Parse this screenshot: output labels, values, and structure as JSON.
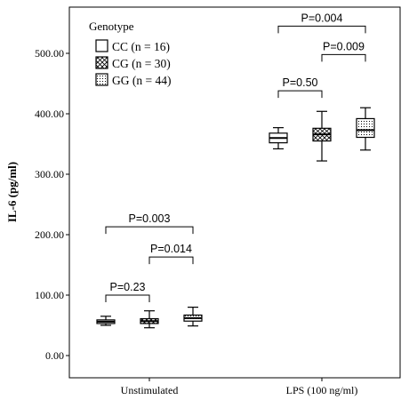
{
  "chart_data": {
    "type": "boxplot",
    "ylabel": "IL-6 (pg/ml)",
    "xlabel": "",
    "ylim": [
      -20,
      560
    ],
    "y_ticks": [
      0,
      100,
      200,
      300,
      400,
      500
    ],
    "y_tick_labels": [
      "0.00",
      "100.00",
      "200.00",
      "300.00",
      "400.00",
      "500.00"
    ],
    "categories": [
      "Unstimulated",
      "LPS (100 ng/ml)"
    ],
    "legend": {
      "title": "Genotype",
      "position": "top-left",
      "entries": [
        {
          "label": "CC (n = 16)",
          "pattern": "plain"
        },
        {
          "label": "CG (n = 30)",
          "pattern": "crosshatch"
        },
        {
          "label": "GG (n = 44)",
          "pattern": "dots"
        }
      ]
    },
    "series": [
      {
        "name": "CC",
        "pattern": "plain",
        "values": [
          {
            "min": 50,
            "q1": 53,
            "median": 56,
            "q3": 59,
            "max": 65
          },
          {
            "min": 342,
            "q1": 352,
            "median": 360,
            "q3": 368,
            "max": 377
          }
        ]
      },
      {
        "name": "CG",
        "pattern": "crosshatch",
        "values": [
          {
            "min": 46,
            "q1": 53,
            "median": 57,
            "q3": 61,
            "max": 74
          },
          {
            "min": 322,
            "q1": 355,
            "median": 366,
            "q3": 376,
            "max": 404
          }
        ]
      },
      {
        "name": "GG",
        "pattern": "dots",
        "values": [
          {
            "min": 49,
            "q1": 57,
            "median": 62,
            "q3": 67,
            "max": 80
          },
          {
            "min": 340,
            "q1": 361,
            "median": 373,
            "q3": 392,
            "max": 410
          }
        ]
      }
    ],
    "annotations": [
      {
        "text": "P=0.23",
        "group": 0,
        "from": 0,
        "to": 1,
        "y": 100
      },
      {
        "text": "P=0.014",
        "group": 0,
        "from": 1,
        "to": 2,
        "y": 163
      },
      {
        "text": "P=0.003",
        "group": 0,
        "from": 0,
        "to": 2,
        "y": 213
      },
      {
        "text": "P=0.50",
        "group": 1,
        "from": 0,
        "to": 1,
        "y": 438
      },
      {
        "text": "P=0.009",
        "group": 1,
        "from": 1,
        "to": 2,
        "y": 498
      },
      {
        "text": "P=0.004",
        "group": 1,
        "from": 0,
        "to": 2,
        "y": 545
      }
    ],
    "colors": {
      "axis": "#000000",
      "box_fill": "#ffffff",
      "pattern": "#000000"
    }
  }
}
